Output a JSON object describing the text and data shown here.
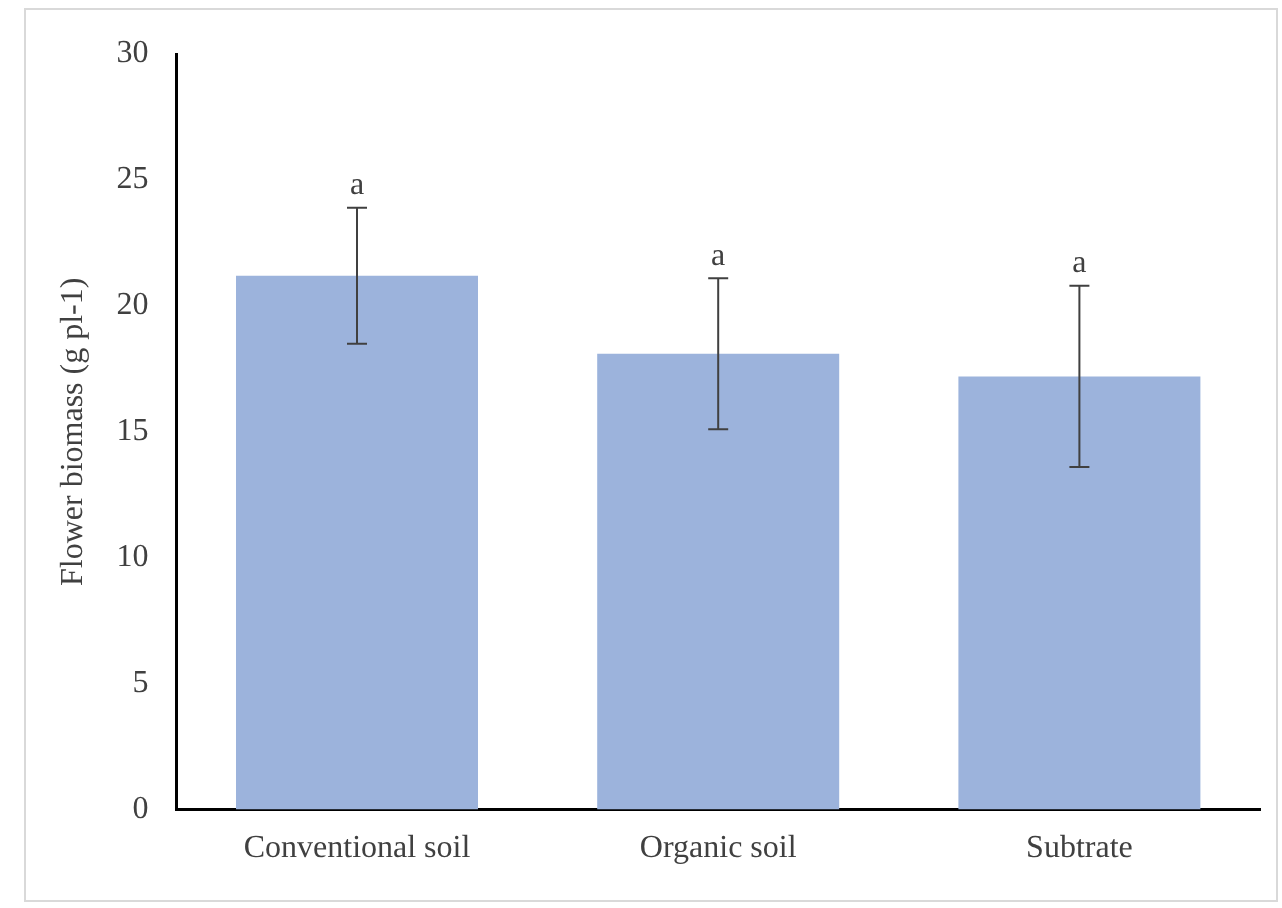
{
  "chart_data": {
    "type": "bar",
    "ylabel": "Flower biomass (g pl-1)",
    "categories": [
      "Conventional soil",
      "Organic soil",
      "Subtrate"
    ],
    "values": [
      21.2,
      18.1,
      17.2
    ],
    "errors": [
      2.7,
      3.0,
      3.6
    ],
    "color": "#9cb3dc",
    "ylim": [
      0,
      30
    ],
    "yticks": [
      0,
      5,
      10,
      15,
      20,
      25,
      30
    ],
    "grid": false,
    "annotations": [
      {
        "text": "a",
        "x": "Conventional soil",
        "y": 23.9
      },
      {
        "text": "a",
        "x": "Organic soil",
        "y": 21.1
      },
      {
        "text": "a",
        "x": "Subtrate",
        "y": 20.8
      }
    ]
  }
}
